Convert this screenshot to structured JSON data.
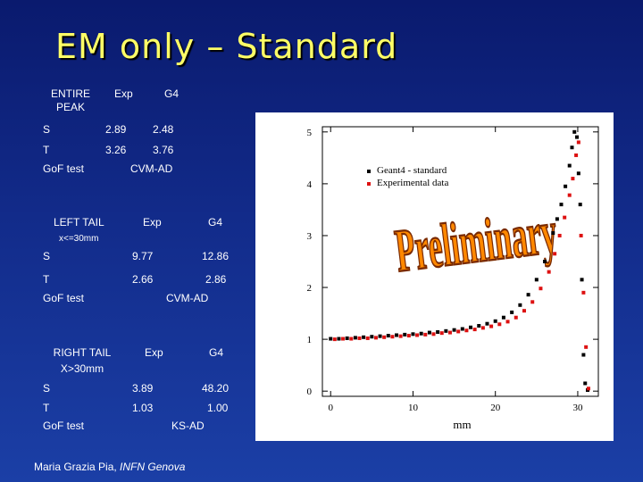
{
  "slide": {
    "title": "EM only – Standard",
    "author_name": "Maria Grazia Pia, ",
    "author_affil": "INFN Genova"
  },
  "tables": {
    "entire": {
      "header": [
        "ENTIRE",
        "PEAK",
        "Exp",
        "G4"
      ],
      "rows": [
        {
          "label": "S",
          "exp": "2.89",
          "g4": "2.48"
        },
        {
          "label": "T",
          "exp": "3.26",
          "g4": "3.76"
        }
      ],
      "gof_label": "GoF test",
      "gof_value": "CVM-AD"
    },
    "left": {
      "header": [
        "LEFT TAIL",
        "x<=30mm",
        "Exp",
        "G4"
      ],
      "rows": [
        {
          "label": "S",
          "exp": "9.77",
          "g4": "12.86"
        },
        {
          "label": "T",
          "exp": "2.66",
          "g4": "2.86"
        }
      ],
      "gof_label": "GoF test",
      "gof_value": "CVM-AD"
    },
    "right": {
      "header": [
        "RIGHT TAIL",
        "X>30mm",
        "Exp",
        "G4"
      ],
      "rows": [
        {
          "label": "S",
          "exp": "3.89",
          "g4": "48.20"
        },
        {
          "label": "T",
          "exp": "1.03",
          "g4": "1.00"
        }
      ],
      "gof_label": "GoF test",
      "gof_value": "KS-AD"
    }
  },
  "chart_data": {
    "type": "scatter",
    "xlabel": "mm",
    "ylabel": "",
    "xlim": [
      -1,
      32.5
    ],
    "ylim": [
      -0.1,
      5.1
    ],
    "xticks": [
      "0",
      "10",
      "20",
      "30"
    ],
    "yticks": [
      "0",
      "1",
      "2",
      "3",
      "4",
      "5"
    ],
    "legend": [
      "Geant4 - standard",
      "Experimental data"
    ],
    "watermark": "Preliminary",
    "colors": {
      "g4": "#000000",
      "exp": "#dd1111",
      "watermark": "#ff8800"
    },
    "series": [
      {
        "name": "Geant4 - standard",
        "color": "#000000",
        "x": [
          0,
          1,
          2,
          3,
          4,
          5,
          6,
          7,
          8,
          9,
          10,
          11,
          12,
          13,
          14,
          15,
          16,
          17,
          18,
          19,
          20,
          21,
          22,
          23,
          24,
          25,
          26,
          27,
          27.5,
          28,
          28.5,
          29,
          29.3,
          29.6,
          29.9,
          30.1,
          30.3,
          30.5,
          30.7,
          30.9,
          31.2
        ],
        "y": [
          1.01,
          1.01,
          1.02,
          1.03,
          1.04,
          1.05,
          1.06,
          1.07,
          1.08,
          1.09,
          1.1,
          1.11,
          1.13,
          1.14,
          1.16,
          1.18,
          1.2,
          1.23,
          1.26,
          1.3,
          1.35,
          1.42,
          1.52,
          1.66,
          1.86,
          2.15,
          2.5,
          3.05,
          3.32,
          3.6,
          3.95,
          4.35,
          4.7,
          5.0,
          4.9,
          4.2,
          3.6,
          2.15,
          0.7,
          0.15,
          0.02
        ]
      },
      {
        "name": "Experimental data",
        "color": "#dd1111",
        "x": [
          0.5,
          1.5,
          2.5,
          3.5,
          4.5,
          5.5,
          6.5,
          7.5,
          8.5,
          9.5,
          10.5,
          11.5,
          12.5,
          13.5,
          14.5,
          15.5,
          16.5,
          17.5,
          18.5,
          19.5,
          20.5,
          21.5,
          22.5,
          23.5,
          24.5,
          25.5,
          26.5,
          27.2,
          27.8,
          28.4,
          29,
          29.4,
          29.8,
          30.1,
          30.4,
          30.7,
          31,
          31.3
        ],
        "y": [
          1.0,
          1.01,
          1.01,
          1.02,
          1.02,
          1.03,
          1.04,
          1.05,
          1.06,
          1.07,
          1.08,
          1.09,
          1.1,
          1.12,
          1.13,
          1.15,
          1.17,
          1.19,
          1.22,
          1.25,
          1.29,
          1.34,
          1.42,
          1.55,
          1.72,
          1.98,
          2.3,
          2.65,
          3.0,
          3.35,
          3.78,
          4.1,
          4.55,
          4.8,
          3.0,
          1.9,
          0.85,
          0.05
        ]
      }
    ]
  }
}
